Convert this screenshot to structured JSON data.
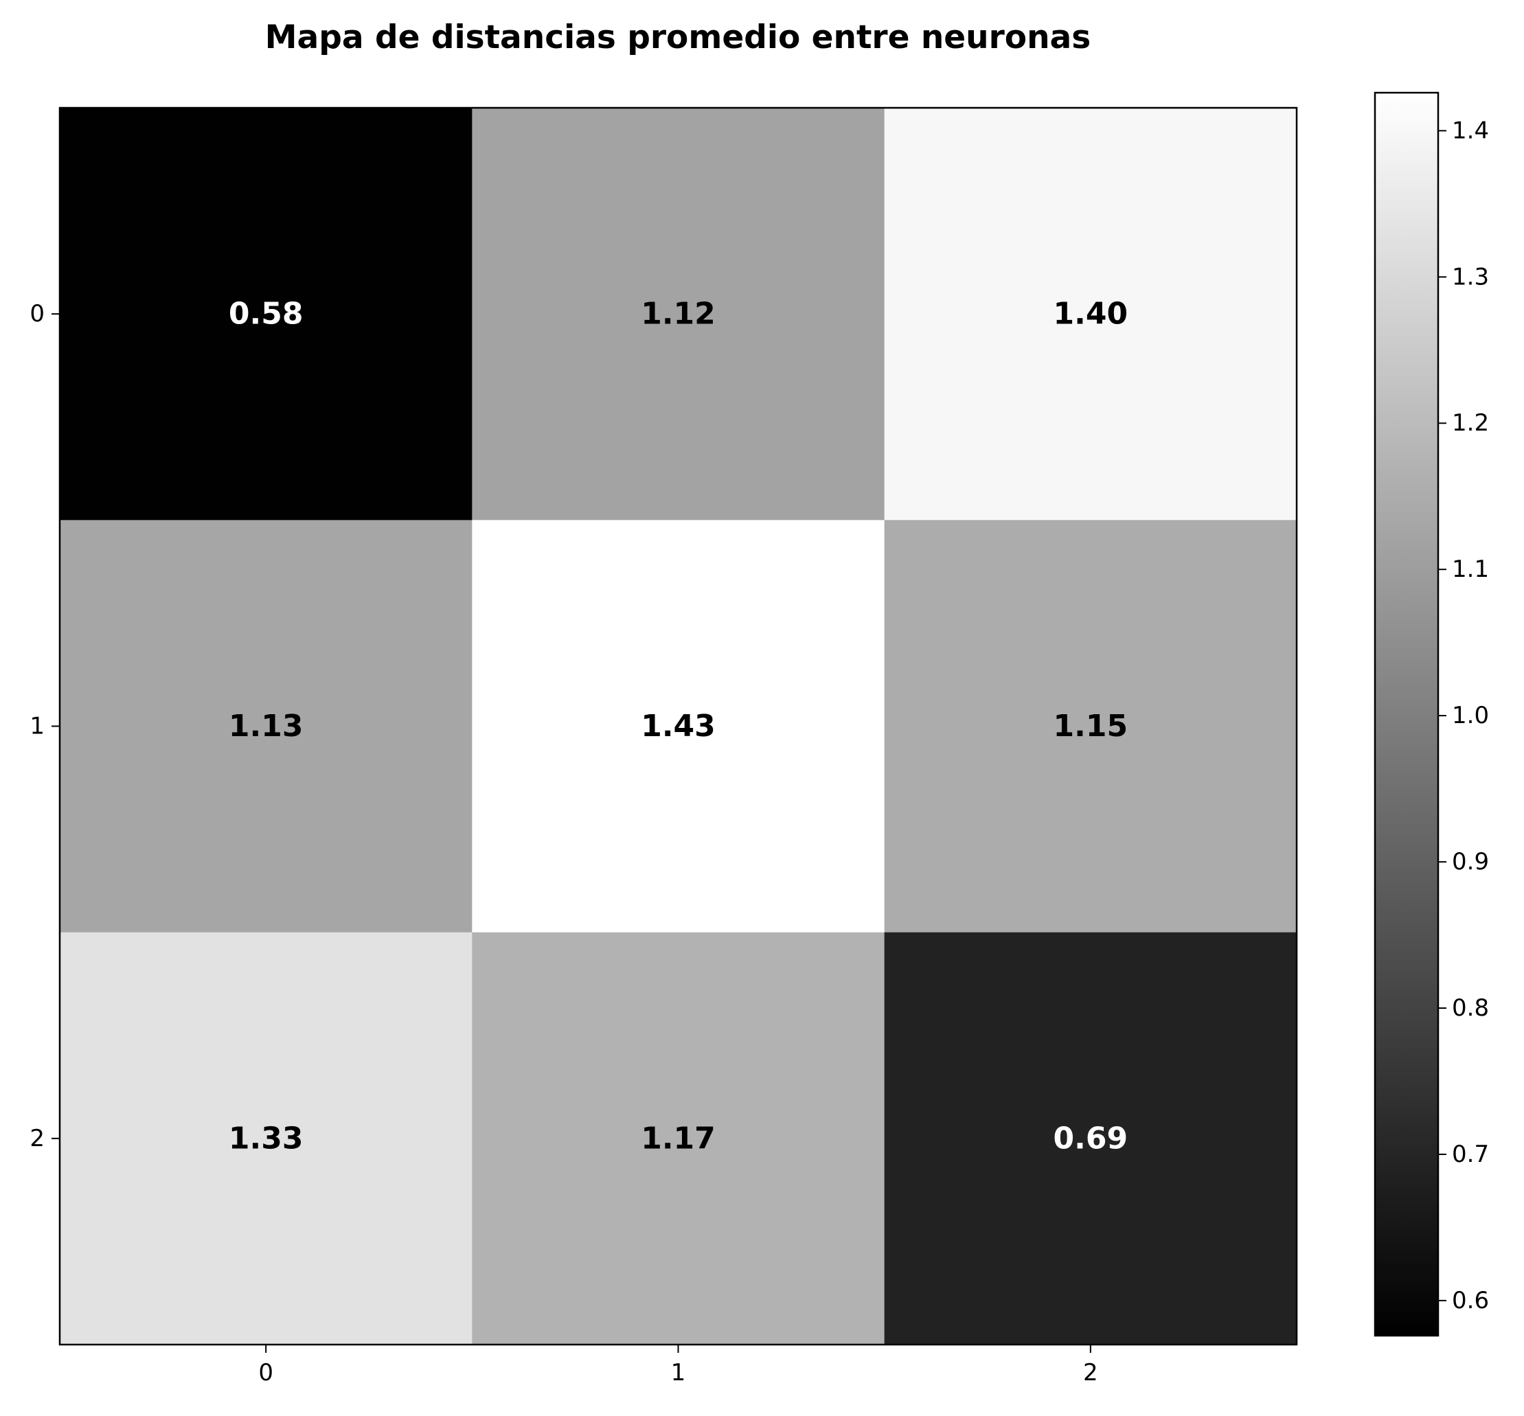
{
  "chart_data": {
    "type": "heatmap",
    "title": "Mapa de distancias promedio entre neuronas",
    "xlabel": "",
    "ylabel": "",
    "x_ticks": [
      "0",
      "1",
      "2"
    ],
    "y_ticks": [
      "0",
      "1",
      "2"
    ],
    "values": [
      [
        0.58,
        1.12,
        1.4
      ],
      [
        1.13,
        1.43,
        1.15
      ],
      [
        1.33,
        1.17,
        0.69
      ]
    ],
    "cell_labels": [
      [
        "0.58",
        "1.12",
        "1.40"
      ],
      [
        "1.13",
        "1.43",
        "1.15"
      ],
      [
        "1.33",
        "1.17",
        "0.69"
      ]
    ],
    "colormap": "gray",
    "colorbar": {
      "range": [
        0.576,
        1.426
      ],
      "ticks": [
        0.6,
        0.7,
        0.8,
        0.9,
        1.0,
        1.1,
        1.2,
        1.3,
        1.4
      ],
      "tick_labels": [
        "0.6",
        "0.7",
        "0.8",
        "0.9",
        "1.0",
        "1.1",
        "1.2",
        "1.3",
        "1.4"
      ]
    },
    "label_colors": {
      "dark_cell": "#ffffff",
      "light_cell": "#000000"
    },
    "grid": false
  }
}
